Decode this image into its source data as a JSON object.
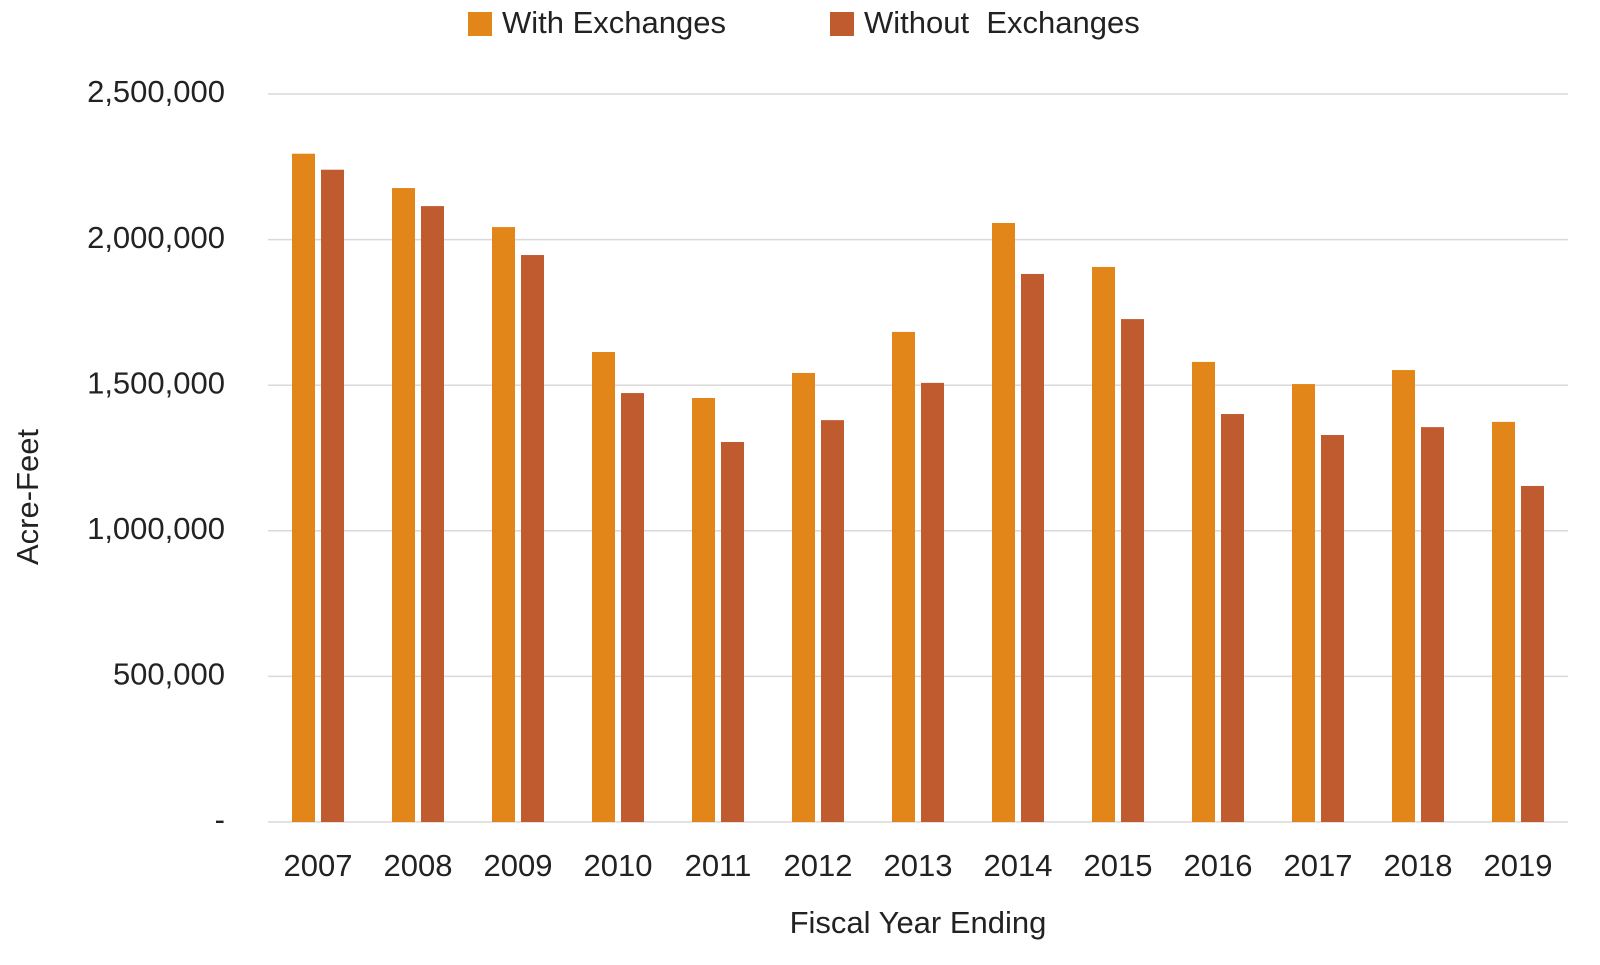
{
  "chart_data": {
    "type": "bar",
    "categories": [
      "2007",
      "2008",
      "2009",
      "2010",
      "2011",
      "2012",
      "2013",
      "2014",
      "2015",
      "2016",
      "2017",
      "2018",
      "2019"
    ],
    "series": [
      {
        "name": "With Exchanges",
        "color": "#e3861a",
        "values": [
          2295000,
          2177000,
          2043000,
          1614000,
          1456000,
          1542000,
          1683000,
          2057000,
          1906000,
          1580000,
          1504000,
          1552000,
          1374000
        ]
      },
      {
        "name": "Without  Exchanges",
        "color": "#bf5b2f",
        "values": [
          2240000,
          2115000,
          1947000,
          1473000,
          1305000,
          1380000,
          1508000,
          1882000,
          1727000,
          1401000,
          1329000,
          1356000,
          1154000
        ]
      }
    ],
    "y_label": "Acre-Feet",
    "x_label": "Fiscal Year Ending",
    "ylim": [
      0,
      2500000
    ],
    "yticks": [
      {
        "value": 0,
        "label": "-"
      },
      {
        "value": 500000,
        "label": "500,000"
      },
      {
        "value": 1000000,
        "label": "1,000,000"
      },
      {
        "value": 1500000,
        "label": "1,500,000"
      },
      {
        "value": 2000000,
        "label": "2,000,000"
      },
      {
        "value": 2500000,
        "label": "2,500,000"
      }
    ],
    "grid": true,
    "legend": "top"
  }
}
